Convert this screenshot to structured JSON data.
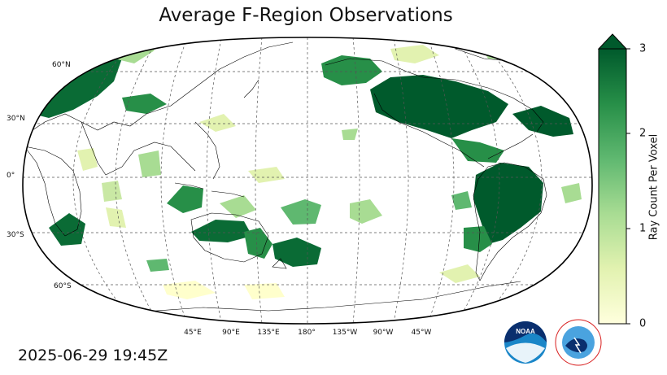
{
  "title": "Average F-Region Observations",
  "timestamp": "2025-06-29 19:45Z",
  "latitude_labels": [
    "60°N",
    "30°N",
    "0°",
    "30°S",
    "60°S"
  ],
  "longitude_labels": [
    "45°E",
    "90°E",
    "135°E",
    "180°",
    "135°W",
    "90°W",
    "45°W"
  ],
  "colorbar": {
    "label": "Ray Count Per Voxel",
    "ticks": [
      "0",
      "1",
      "2",
      "3"
    ],
    "min": 0,
    "max": 3,
    "extend": "max",
    "colors": [
      "#ffffdd",
      "#e2f2b0",
      "#a8dc93",
      "#5fb870",
      "#278f48",
      "#005a2c"
    ]
  },
  "map": {
    "projection": "Robinson",
    "central_longitude": "180°",
    "ocean_color": "#ffffff",
    "coastline_color": "#000000"
  },
  "logos": {
    "noaa": "NOAA",
    "nws": "NATIONAL WEATHER SERVICE"
  }
}
